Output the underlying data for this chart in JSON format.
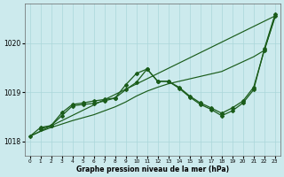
{
  "bg_color": "#cceaed",
  "grid_color": "#aad6da",
  "line_color_dark": "#1a5c1a",
  "xlabel": "Graphe pression niveau de la mer (hPa)",
  "yticks": [
    1018,
    1019,
    1020
  ],
  "ylim": [
    1017.7,
    1020.8
  ],
  "xlim": [
    -0.5,
    23.5
  ],
  "xticks": [
    0,
    1,
    2,
    3,
    4,
    5,
    6,
    7,
    8,
    9,
    10,
    11,
    12,
    13,
    14,
    15,
    16,
    17,
    18,
    19,
    20,
    21,
    22,
    23
  ],
  "straight_line": {
    "x": [
      0,
      23
    ],
    "y": [
      1018.1,
      1020.55
    ]
  },
  "smooth_line": {
    "x": [
      0,
      1,
      2,
      3,
      4,
      5,
      6,
      7,
      8,
      9,
      10,
      11,
      12,
      13,
      14,
      15,
      16,
      17,
      18,
      19,
      20,
      21,
      22,
      23
    ],
    "y": [
      1018.1,
      1018.2,
      1018.28,
      1018.35,
      1018.42,
      1018.48,
      1018.54,
      1018.62,
      1018.7,
      1018.8,
      1018.92,
      1019.02,
      1019.1,
      1019.17,
      1019.22,
      1019.27,
      1019.32,
      1019.37,
      1019.42,
      1019.52,
      1019.62,
      1019.72,
      1019.85,
      1020.52
    ]
  },
  "zigzag1_x": [
    1,
    2,
    3,
    4,
    5,
    6,
    7,
    8,
    9,
    10,
    11,
    12,
    13,
    14,
    15,
    16,
    17,
    18,
    19,
    20,
    21,
    22,
    23
  ],
  "zigzag1_y": [
    1018.25,
    1018.32,
    1018.58,
    1018.75,
    1018.78,
    1018.82,
    1018.85,
    1018.88,
    1019.05,
    1019.2,
    1019.47,
    1019.22,
    1019.22,
    1019.1,
    1018.92,
    1018.78,
    1018.68,
    1018.57,
    1018.68,
    1018.82,
    1019.1,
    1019.85,
    1020.55
  ],
  "zigzag2_x": [
    0,
    1,
    2,
    3,
    4,
    5,
    6,
    7,
    8,
    9,
    10,
    11,
    12,
    13,
    14,
    15,
    16,
    17,
    18,
    19,
    20,
    21,
    22,
    23
  ],
  "zigzag2_y": [
    1018.1,
    1018.28,
    1018.32,
    1018.52,
    1018.72,
    1018.75,
    1018.77,
    1018.82,
    1018.88,
    1019.15,
    1019.38,
    1019.47,
    1019.22,
    1019.22,
    1019.08,
    1018.9,
    1018.75,
    1018.65,
    1018.52,
    1018.62,
    1018.78,
    1019.05,
    1019.88,
    1020.58
  ],
  "xlabel_fontsize": 5.5,
  "ytick_fontsize": 5.5,
  "xtick_fontsize": 4.2
}
